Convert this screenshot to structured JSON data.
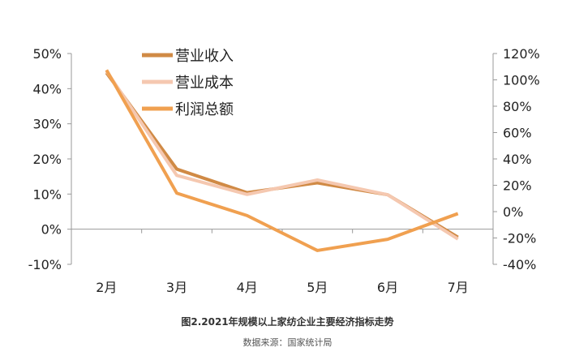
{
  "chart_data": {
    "type": "line",
    "categories": [
      "2月",
      "3月",
      "4月",
      "5月",
      "6月",
      "7月"
    ],
    "series": [
      {
        "name": "营业收入",
        "axis": "left",
        "color": "#D08A45",
        "values": [
          44.5,
          17.1,
          10.4,
          13.2,
          9.8,
          -2.3
        ]
      },
      {
        "name": "营业成本",
        "axis": "left",
        "color": "#F5C8B0",
        "values": [
          45.0,
          15.3,
          9.9,
          14.0,
          9.8,
          -2.8
        ]
      },
      {
        "name": "利润总额",
        "axis": "right",
        "color": "#F0A050",
        "values": [
          107.5,
          14.0,
          -3.0,
          -29.5,
          -21.0,
          -1.5
        ]
      }
    ],
    "left_axis": {
      "ylim": [
        -10,
        50
      ],
      "ticks": [
        "-10%",
        "0%",
        "10%",
        "20%",
        "30%",
        "40%",
        "50%"
      ]
    },
    "right_axis": {
      "ylim": [
        -40,
        120
      ],
      "ticks": [
        "-40%",
        "-20%",
        "0%",
        "20%",
        "40%",
        "60%",
        "80%",
        "100%",
        "120%"
      ]
    },
    "legend": "top-left",
    "grid": false
  },
  "caption": "图2.2021年规模以上家纺企业主要经济指标走势",
  "source": "数据来源：国家统计局"
}
